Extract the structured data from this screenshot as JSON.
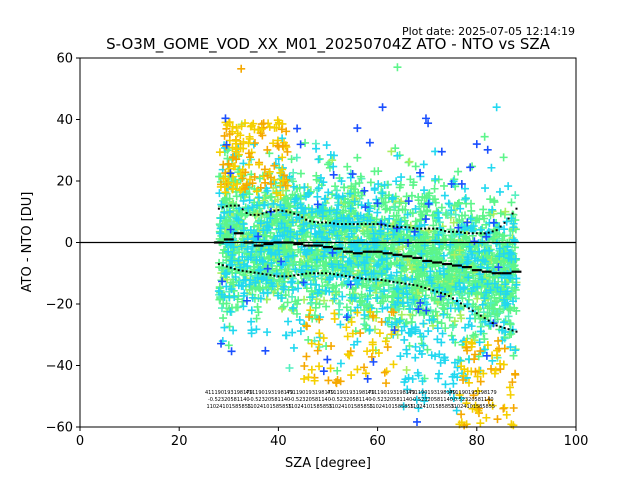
{
  "chart_data": {
    "type": "scatter",
    "title": "S-O3M_GOME_VOD_XX_M01_20250704Z ATO - NTO vs SZA",
    "plot_date": "Plot date: 2025-07-05 12:14:19",
    "xlabel": "SZA [degree]",
    "ylabel": "ATO - NTO [DU]",
    "xlim": [
      0,
      100
    ],
    "ylim": [
      -60,
      60
    ],
    "x_ticks": [
      0,
      20,
      40,
      60,
      80,
      100
    ],
    "y_ticks": [
      -60,
      -40,
      -20,
      0,
      20,
      40,
      60
    ],
    "x_tick_labels": [
      "0",
      "20",
      "40",
      "60",
      "80",
      "100"
    ],
    "y_tick_labels": [
      "−60",
      "−40",
      "−20",
      "0",
      "20",
      "40",
      "60"
    ],
    "grid": false,
    "zero_line": 0,
    "sza_range": [
      28,
      88
    ],
    "marker": "+",
    "colors": {
      "green": "#5cf58a",
      "light_green": "#a8f060",
      "cyan": "#22d8f0",
      "blue": "#1a4fff",
      "yellow": "#f5d000",
      "orange": "#f5a800",
      "teal": "#55f0c0"
    },
    "median": {
      "x": [
        28,
        30,
        32,
        34,
        36,
        38,
        40,
        42,
        44,
        46,
        48,
        50,
        52,
        54,
        56,
        58,
        60,
        62,
        64,
        66,
        68,
        70,
        72,
        74,
        76,
        78,
        80,
        82,
        84,
        86,
        88
      ],
      "y": [
        0,
        1,
        3,
        0,
        -1,
        -0.5,
        0,
        0,
        -0.5,
        -1,
        -1,
        -1.5,
        -2,
        -3,
        -3.5,
        -3,
        -3,
        -3.5,
        -4,
        -4.5,
        -5,
        -6,
        -6.5,
        -7,
        -7.5,
        -8,
        -9,
        -9.5,
        -10,
        -10,
        -9.5
      ]
    },
    "upper_percentile": {
      "x": [
        28,
        30,
        32,
        34,
        36,
        38,
        40,
        42,
        44,
        46,
        48,
        50,
        52,
        54,
        56,
        58,
        60,
        62,
        64,
        66,
        68,
        70,
        72,
        74,
        76,
        78,
        80,
        82,
        84,
        86,
        88
      ],
      "y": [
        11,
        12,
        12,
        9,
        9,
        10,
        10.5,
        10,
        9,
        7,
        6.5,
        6.5,
        6,
        6,
        6,
        6,
        6,
        5.5,
        5,
        5,
        4.5,
        4.5,
        4.5,
        3.5,
        3.5,
        3,
        3,
        3,
        4,
        7,
        11
      ]
    },
    "lower_percentile": {
      "x": [
        28,
        30,
        32,
        34,
        36,
        38,
        40,
        42,
        44,
        46,
        48,
        50,
        52,
        54,
        56,
        58,
        60,
        62,
        64,
        66,
        68,
        70,
        72,
        74,
        76,
        78,
        80,
        82,
        84,
        86,
        88
      ],
      "y": [
        -7,
        -8,
        -9,
        -9.5,
        -10,
        -10.5,
        -11,
        -11,
        -10.5,
        -10,
        -10,
        -10,
        -10.5,
        -11,
        -11.5,
        -12,
        -12,
        -12.5,
        -13,
        -13.5,
        -14,
        -15,
        -16,
        -17,
        -19,
        -21,
        -23,
        -25,
        -27,
        -28,
        -29
      ]
    },
    "annotation_rows": [
      "411190193198179 …",
      "-0.52320581140 …",
      "11024101585855 …"
    ]
  }
}
